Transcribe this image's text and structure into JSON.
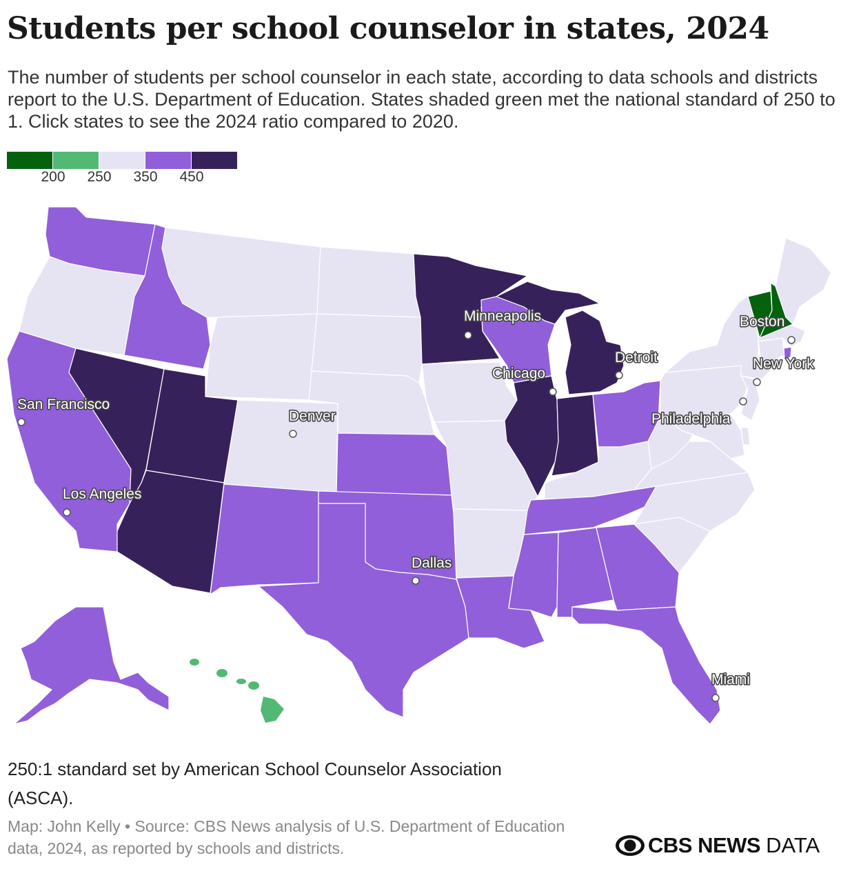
{
  "title": "Students per school counselor in states, 2024",
  "subtitle": "The number of students per school counselor in each state, according to data schools and districts report to the U.S. Department of Education. States shaded green met the national standard of 250 to 1. Click states to see the 2024 ratio compared to 2020.",
  "legend": {
    "colors": [
      "#04620f",
      "#52b974",
      "#e6e3f3",
      "#915fd9",
      "#37215a"
    ],
    "ticks": [
      "200",
      "250",
      "350",
      "450"
    ]
  },
  "colors": {
    "lowest": "#04620f",
    "meets_standard": "#52b974",
    "middle": "#e6e3f3",
    "high": "#915fd9",
    "highest": "#37215a"
  },
  "cities": [
    {
      "name": "San Francisco"
    },
    {
      "name": "Los Angeles"
    },
    {
      "name": "Denver"
    },
    {
      "name": "Minneapolis"
    },
    {
      "name": "Chicago"
    },
    {
      "name": "Detroit"
    },
    {
      "name": "Dallas"
    },
    {
      "name": "Boston"
    },
    {
      "name": "New York"
    },
    {
      "name": "Philadelphia"
    },
    {
      "name": "Miami"
    }
  ],
  "note": "250:1 standard set by American School Counselor Association (ASCA).",
  "source": "Map: John Kelly • Source: CBS News analysis of U.S. Department of Education data, 2024, as reported by schools and districts.",
  "logo": {
    "brand": "CBS NEWS",
    "suffix": "DATA"
  }
}
